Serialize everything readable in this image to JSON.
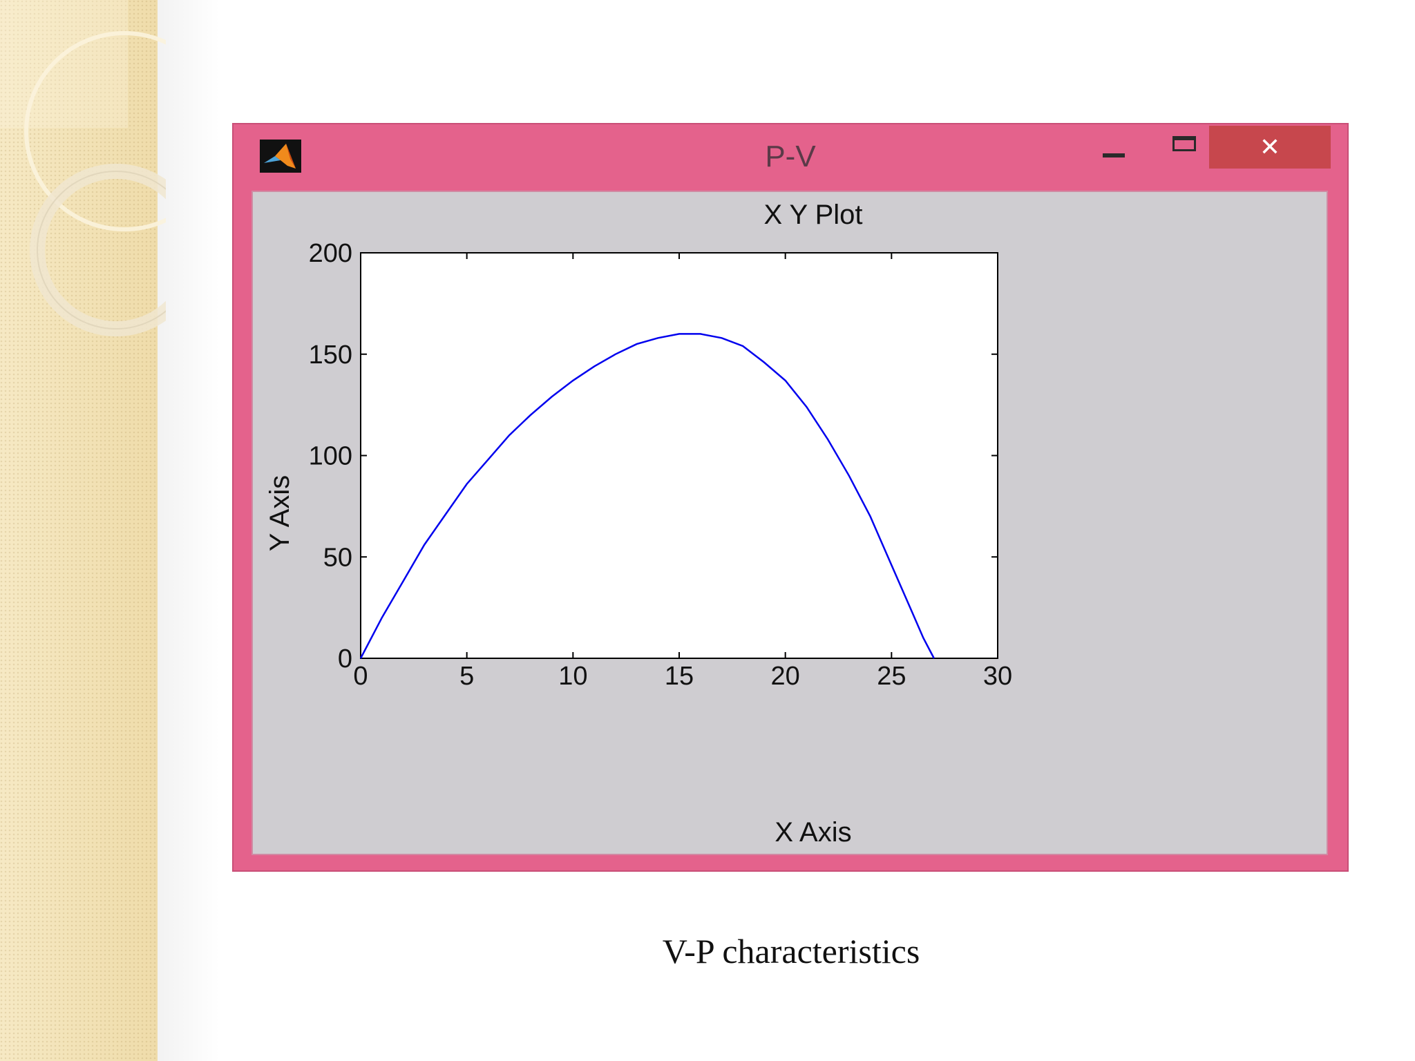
{
  "window": {
    "title": "P-V",
    "close_glyph": "✕"
  },
  "icons": {
    "app": "matlab-logo-icon",
    "minimize": "minimize-icon",
    "maximize": "maximize-icon",
    "close": "close-icon"
  },
  "colors": {
    "window_frame": "#e4628c",
    "close_button": "#c7474d",
    "canvas": "#cfcdd1",
    "series_line": "#0000ee"
  },
  "chart_data": {
    "type": "line",
    "title": "X Y Plot",
    "xlabel": "X Axis",
    "ylabel": "Y Axis",
    "xlim": [
      0,
      30
    ],
    "ylim": [
      0,
      200
    ],
    "xticks": [
      0,
      5,
      10,
      15,
      20,
      25,
      30
    ],
    "yticks": [
      0,
      50,
      100,
      150,
      200
    ],
    "grid": false,
    "series": [
      {
        "x": [
          0,
          1,
          2,
          3,
          4,
          5,
          6,
          7,
          8,
          9,
          10,
          11,
          12,
          13,
          14,
          15,
          16,
          17,
          18,
          19,
          20,
          21,
          22,
          23,
          24,
          25,
          26,
          26.5,
          27
        ],
        "y": [
          0,
          20,
          38,
          56,
          71,
          86,
          98,
          110,
          120,
          129,
          137,
          144,
          150,
          155,
          158,
          160,
          160,
          158,
          154,
          146,
          137,
          124,
          108,
          90,
          70,
          46,
          22,
          10,
          0
        ]
      }
    ]
  },
  "caption": "V-P characteristics"
}
